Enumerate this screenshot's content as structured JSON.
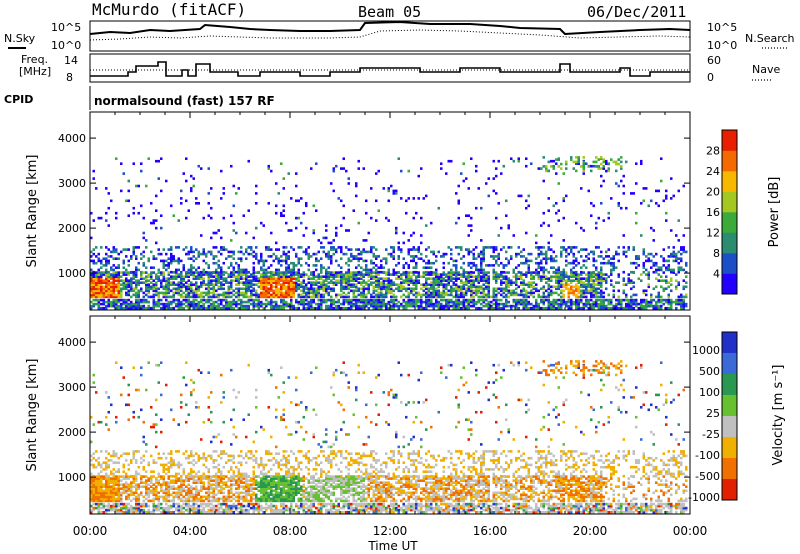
{
  "header": {
    "station": "McMurdo (fitACF)",
    "beam": "Beam 05",
    "date": "06/Dec/2011"
  },
  "top_panels": {
    "nsky_label": "N.Sky",
    "nsearch_label": "N.Search",
    "noise_ticks": [
      "10^5",
      "10^0"
    ],
    "freq_label_1": "Freq.",
    "freq_label_2": "[MHz]",
    "freq_ticks": [
      "14",
      "8"
    ],
    "nave_label": "Nave",
    "nave_ticks": [
      "60",
      "0"
    ],
    "cpid_label": "CPID",
    "cpid_value": "normalsound (fast) 157 RF"
  },
  "chart_data": [
    {
      "type": "heatmap",
      "title": "",
      "parameter": "Power",
      "ylabel": "Slant Range [km]",
      "xlabel": "",
      "ylim": [
        180,
        4580
      ],
      "y_ticks": [
        "1000",
        "2000",
        "3000",
        "4000"
      ],
      "colorbar_label": "Power [dB]",
      "colorbar_ticks": [
        "4",
        "8",
        "12",
        "16",
        "20",
        "24",
        "28"
      ],
      "colorbar_colors": [
        "#2200ff",
        "#1a4fc8",
        "#2a8c70",
        "#3aaa3a",
        "#a4c820",
        "#f8b800",
        "#f46a00",
        "#e82000"
      ]
    },
    {
      "type": "heatmap",
      "title": "",
      "parameter": "Velocity",
      "ylabel": "Slant Range [km]",
      "xlabel": "Time UT",
      "ylim": [
        180,
        4580
      ],
      "y_ticks": [
        "1000",
        "2000",
        "3000",
        "4000"
      ],
      "x_ticks": [
        "00:00",
        "04:00",
        "08:00",
        "12:00",
        "16:00",
        "20:00",
        "00:00"
      ],
      "colorbar_label": "Velocity [m s⁻¹]",
      "colorbar_ticks": [
        "1000",
        "500",
        "100",
        "25",
        "-25",
        "-100",
        "-500",
        "-1000"
      ],
      "colorbar_colors": [
        "#2030c8",
        "#3a6ad8",
        "#2a9850",
        "#66c030",
        "#c0c0c0",
        "#f0b000",
        "#f07000",
        "#e02000"
      ]
    }
  ]
}
